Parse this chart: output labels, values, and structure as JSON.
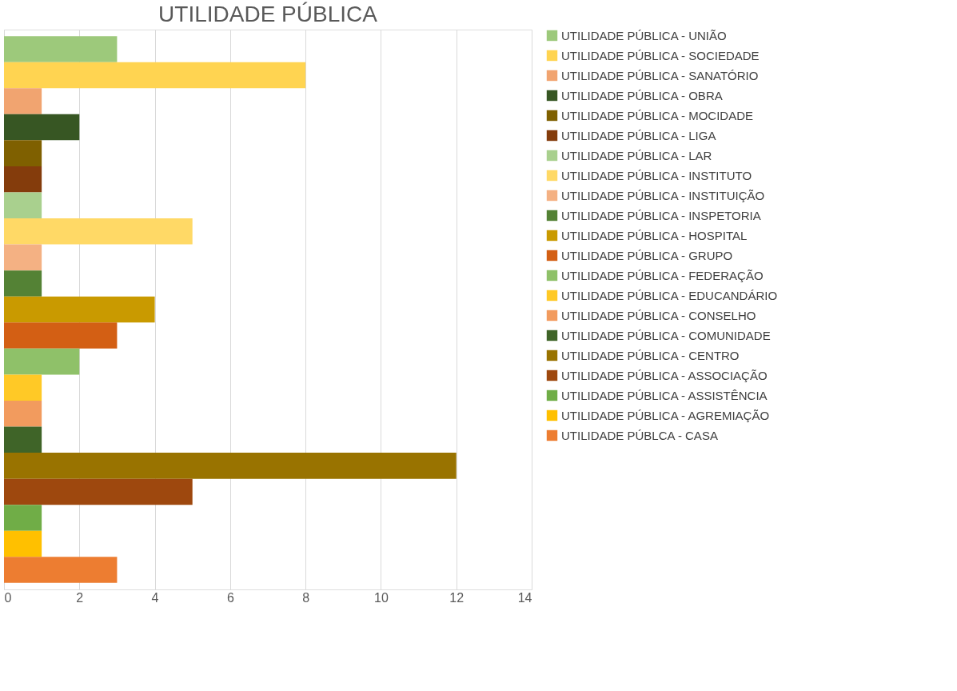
{
  "chart_data": {
    "type": "bar",
    "orientation": "horizontal",
    "title": "UTILIDADE PÚBLICA",
    "categories": [
      null
    ],
    "series": [
      {
        "name": "UTILIDADE PÚBLICA - UNIÃO",
        "color": "#9dc97b",
        "values": [
          3
        ]
      },
      {
        "name": "UTILIDADE PÚBLICA - SOCIEDADE",
        "color": "#ffd451",
        "values": [
          8
        ]
      },
      {
        "name": "UTILIDADE PÚBLICA - SANATÓRIO",
        "color": "#f1a470",
        "values": [
          1
        ]
      },
      {
        "name": "UTILIDADE PÚBLICA - OBRA",
        "color": "#375623",
        "values": [
          2
        ]
      },
      {
        "name": "UTILIDADE PÚBLICA - MOCIDADE",
        "color": "#7f6000",
        "values": [
          1
        ]
      },
      {
        "name": "UTILIDADE PÚBLICA - LIGA",
        "color": "#843c0c",
        "values": [
          1
        ]
      },
      {
        "name": "UTILIDADE PÚBLICA - LAR",
        "color": "#a9d08e",
        "values": [
          1
        ]
      },
      {
        "name": "UTILIDADE PÚBLICA - INSTITUTO",
        "color": "#ffd966",
        "values": [
          5
        ]
      },
      {
        "name": "UTILIDADE PÚBLICA - INSTITUIÇÃO",
        "color": "#f4b183",
        "values": [
          1
        ]
      },
      {
        "name": "UTILIDADE PÚBLICA - INSPETORIA",
        "color": "#548235",
        "values": [
          1
        ]
      },
      {
        "name": "UTILIDADE PÚBLICA - HOSPITAL",
        "color": "#c99a00",
        "values": [
          4
        ]
      },
      {
        "name": "UTILIDADE PÚBLICA - GRUPO",
        "color": "#d35f14",
        "values": [
          3
        ]
      },
      {
        "name": "UTILIDADE PÚBLICA - FEDERAÇÃO",
        "color": "#8fc169",
        "values": [
          2
        ]
      },
      {
        "name": "UTILIDADE PÚBLICA - EDUCANDÁRIO",
        "color": "#ffc926",
        "values": [
          1
        ]
      },
      {
        "name": "UTILIDADE PÚBLICA - CONSELHO",
        "color": "#f29b5e",
        "values": [
          1
        ]
      },
      {
        "name": "UTILIDADE PÚBLICA - COMUNIDADE",
        "color": "#3f6428",
        "values": [
          1
        ]
      },
      {
        "name": "UTILIDADE PÚBLICA - CENTRO",
        "color": "#997300",
        "values": [
          12
        ]
      },
      {
        "name": "UTILIDADE PÚBLICA - ASSOCIAÇÃO",
        "color": "#9e480e",
        "values": [
          5
        ]
      },
      {
        "name": "UTILIDADE PÚBLICA - ASSISTÊNCIA",
        "color": "#70ad47",
        "values": [
          1
        ]
      },
      {
        "name": "UTILIDADE PÚBLICA - AGREMIAÇÃO",
        "color": "#ffc000",
        "values": [
          1
        ]
      },
      {
        "name": "UTILIDADE PÚBLCA - CASA",
        "color": "#ed7d31",
        "values": [
          3
        ]
      }
    ],
    "xlim": [
      0,
      14
    ],
    "xticks": [
      0,
      2,
      4,
      6,
      8,
      10,
      12,
      14
    ],
    "grid": "x",
    "legend": "right"
  }
}
